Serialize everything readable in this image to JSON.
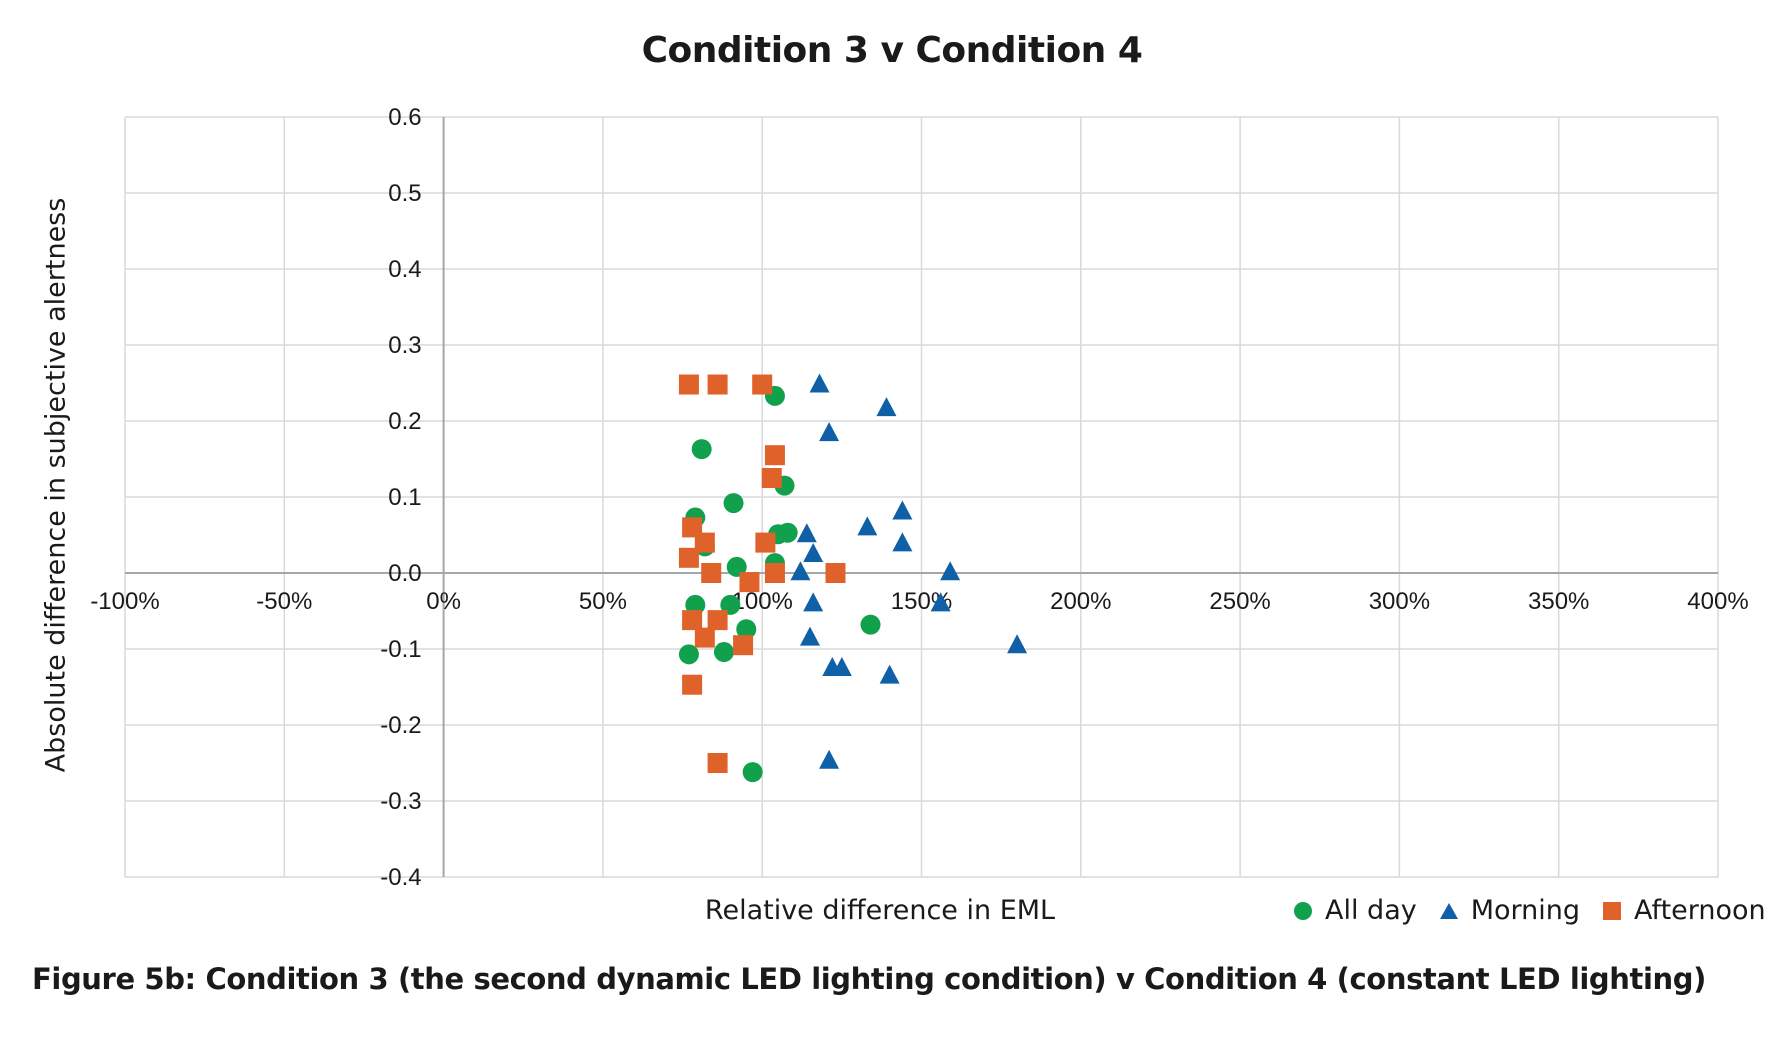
{
  "chart_data": {
    "type": "scatter",
    "title": "Condition 3 v Condition 4",
    "xlabel": "Relative difference in EML",
    "ylabel": "Absolute difference in subjective alertness",
    "xlim": [
      -100,
      400
    ],
    "ylim": [
      -0.4,
      0.6
    ],
    "x_ticks": [
      "-100%",
      "-50%",
      "0%",
      "50%",
      "100%",
      "150%",
      "200%",
      "250%",
      "300%",
      "350%",
      "400%"
    ],
    "y_ticks": [
      "0.6",
      "0.5",
      "0.4",
      "0.3",
      "0.2",
      "0.1",
      "0.0",
      "-0.1",
      "-0.2",
      "-0.3",
      "-0.4"
    ],
    "grid": true,
    "legend_position": "bottom-right",
    "series": [
      {
        "name": "All day",
        "marker": "circle",
        "color": "#11a14c",
        "points": [
          [
            104,
            0.233
          ],
          [
            81,
            0.163
          ],
          [
            91,
            0.092
          ],
          [
            107,
            0.115
          ],
          [
            79,
            0.073
          ],
          [
            108,
            0.053
          ],
          [
            105,
            0.051
          ],
          [
            82,
            0.035
          ],
          [
            104,
            0.013
          ],
          [
            92,
            0.008
          ],
          [
            79,
            -0.042
          ],
          [
            90,
            -0.042
          ],
          [
            95,
            -0.074
          ],
          [
            134,
            -0.068
          ],
          [
            77,
            -0.107
          ],
          [
            88,
            -0.104
          ],
          [
            97,
            -0.262
          ]
        ]
      },
      {
        "name": "Morning",
        "marker": "triangle",
        "color": "#1060a8",
        "points": [
          [
            118,
            0.248
          ],
          [
            139,
            0.217
          ],
          [
            121,
            0.184
          ],
          [
            144,
            0.081
          ],
          [
            133,
            0.06
          ],
          [
            114,
            0.051
          ],
          [
            144,
            0.039
          ],
          [
            116,
            0.025
          ],
          [
            112,
            0.001
          ],
          [
            159,
            0.001
          ],
          [
            116,
            -0.04
          ],
          [
            156,
            -0.04
          ],
          [
            115,
            -0.085
          ],
          [
            180,
            -0.095
          ],
          [
            122,
            -0.125
          ],
          [
            125,
            -0.125
          ],
          [
            140,
            -0.135
          ],
          [
            121,
            -0.247
          ]
        ]
      },
      {
        "name": "Afternoon",
        "marker": "square",
        "color": "#e0622b",
        "points": [
          [
            77,
            0.248
          ],
          [
            86,
            0.248
          ],
          [
            100,
            0.248
          ],
          [
            104,
            0.155
          ],
          [
            103,
            0.125
          ],
          [
            78,
            0.06
          ],
          [
            82,
            0.04
          ],
          [
            101,
            0.04
          ],
          [
            77,
            0.02
          ],
          [
            84,
            0.0
          ],
          [
            104,
            0.0
          ],
          [
            123,
            0.0
          ],
          [
            96,
            -0.012
          ],
          [
            78,
            -0.062
          ],
          [
            86,
            -0.062
          ],
          [
            82,
            -0.085
          ],
          [
            94,
            -0.095
          ],
          [
            78,
            -0.147
          ],
          [
            86,
            -0.25
          ]
        ]
      }
    ]
  },
  "caption": "Figure 5b: Condition 3 (the second dynamic LED lighting condition) v Condition 4 (constant LED lighting)"
}
